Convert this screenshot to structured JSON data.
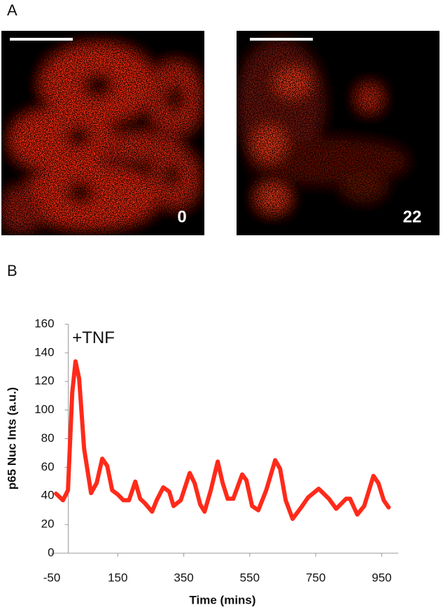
{
  "panels": {
    "a_label": "A",
    "b_label": "B",
    "images": [
      {
        "label": "0"
      },
      {
        "label": "22"
      }
    ]
  },
  "chart_data": {
    "type": "line",
    "x_label": "Time (mins)",
    "y_label": "p65 Nuc Ints (a.u.)",
    "annotation": {
      "text": "+TNF",
      "x": 12,
      "y": 150
    },
    "color": "#ff2a1a",
    "x": [
      -37,
      -16,
      -1,
      12,
      22,
      33,
      48,
      69,
      86,
      103,
      118,
      133,
      150,
      167,
      184,
      203,
      218,
      232,
      254,
      268,
      288,
      306,
      319,
      341,
      368,
      383,
      400,
      413,
      432,
      453,
      468,
      483,
      500,
      527,
      540,
      557,
      576,
      600,
      627,
      642,
      659,
      680,
      706,
      727,
      759,
      790,
      812,
      842,
      854,
      876,
      897,
      925,
      940,
      956,
      971
    ],
    "values": [
      41.6,
      37,
      44,
      112,
      134,
      122,
      73,
      42,
      49,
      66,
      61,
      44,
      41,
      37,
      37,
      50,
      38,
      35,
      29,
      37,
      46,
      43,
      33,
      37,
      56,
      49,
      34,
      29,
      44,
      64,
      49,
      38,
      38,
      55,
      51,
      33,
      30,
      44,
      65,
      59,
      37,
      24,
      32,
      39,
      45,
      38,
      31,
      38,
      38,
      27,
      33,
      54,
      49,
      37,
      32
    ],
    "xlim": [
      -50,
      1000
    ],
    "xticks": [
      -50,
      150,
      350,
      550,
      750,
      950
    ],
    "ylim": [
      0,
      160
    ],
    "yticks": [
      0,
      20,
      40,
      60,
      80,
      100,
      120,
      140,
      160
    ]
  }
}
